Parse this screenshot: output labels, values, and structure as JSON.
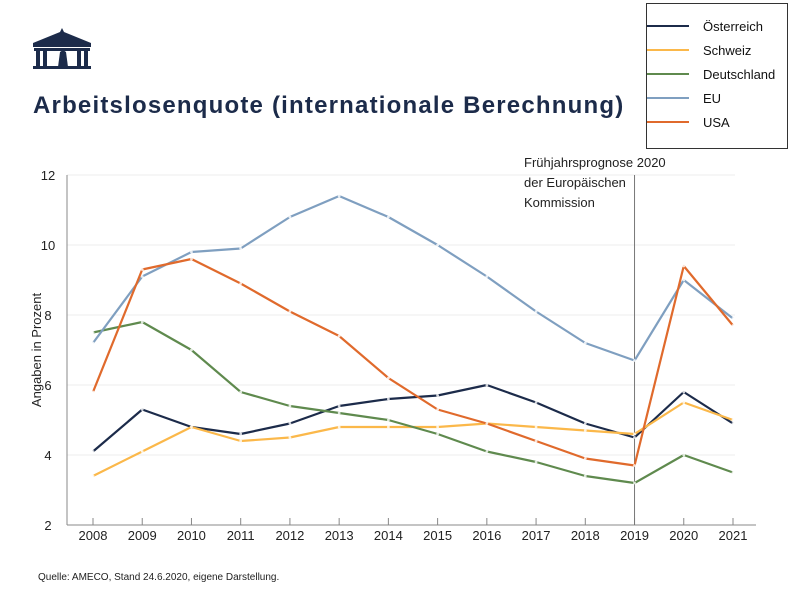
{
  "title": "Arbeitslosenquote (internationale Berechnung)",
  "source": "Quelle: AMECO, Stand 24.6.2020, eigene Darstellung.",
  "chart_data": {
    "type": "line",
    "title": "Arbeitslosenquote (internationale Berechnung)",
    "xlabel": "",
    "ylabel": "Angaben in Prozent",
    "ylim": [
      2,
      12
    ],
    "yticks": [
      "2",
      "4",
      "6",
      "8",
      "10",
      "12"
    ],
    "x": [
      "2008",
      "2009",
      "2010",
      "2011",
      "2012",
      "2013",
      "2014",
      "2015",
      "2016",
      "2017",
      "2018",
      "2019",
      "2020",
      "2021"
    ],
    "grid": true,
    "legend": "top-right",
    "annotation": {
      "x": "2019",
      "lines": [
        "Frühjahrsprognose 2020",
        "der Europäischen",
        "Kommission"
      ]
    },
    "series": [
      {
        "name": "Österreich",
        "color": "#1c2b4a",
        "values": [
          4.1,
          5.3,
          4.8,
          4.6,
          4.9,
          5.4,
          5.6,
          5.7,
          6.0,
          5.5,
          4.9,
          4.5,
          5.8,
          4.9
        ]
      },
      {
        "name": "Schweiz",
        "color": "#fbb84a",
        "values": [
          3.4,
          4.1,
          4.8,
          4.4,
          4.5,
          4.8,
          4.8,
          4.8,
          4.9,
          4.8,
          4.7,
          4.6,
          5.5,
          5.0
        ]
      },
      {
        "name": "Deutschland",
        "color": "#5f8a4e",
        "values": [
          7.5,
          7.8,
          7.0,
          5.8,
          5.4,
          5.2,
          5.0,
          4.6,
          4.1,
          3.8,
          3.4,
          3.2,
          4.0,
          3.5
        ]
      },
      {
        "name": "EU",
        "color": "#7f9fc0",
        "values": [
          7.2,
          9.1,
          9.8,
          9.9,
          10.8,
          11.4,
          10.8,
          10.0,
          9.1,
          8.1,
          7.2,
          6.7,
          9.0,
          7.9
        ]
      },
      {
        "name": "USA",
        "color": "#e06a2c",
        "values": [
          5.8,
          9.3,
          9.6,
          8.9,
          8.1,
          7.4,
          6.2,
          5.3,
          4.9,
          4.4,
          3.9,
          3.7,
          9.4,
          7.7
        ]
      }
    ]
  }
}
